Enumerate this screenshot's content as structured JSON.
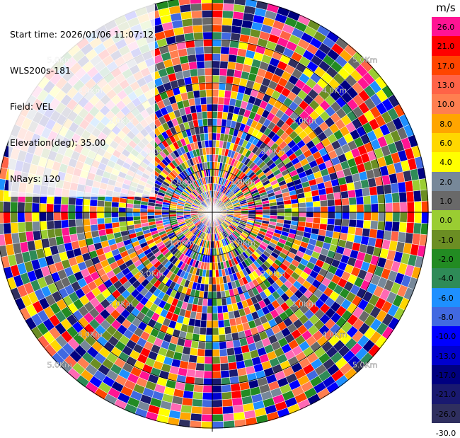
{
  "info": {
    "start_time": "Start time: 2026/01/06 11:07:12",
    "station": "WLS200s-181",
    "field": "Field: VEL",
    "elevation": "Elevation(deg): 35.00",
    "nrays": "NRays: 120"
  },
  "range_labels": [
    "1.0Km",
    "2.0Km",
    "3.0Km",
    "4.0Km",
    "5.0Km"
  ],
  "colorbar": {
    "unit": "m/s",
    "labels": [
      "26.0",
      "21.0",
      "17.0",
      "13.0",
      "10.0",
      "8.0",
      "6.0",
      "4.0",
      "2.0",
      "1.0",
      "0.0",
      "-1.0",
      "-2.0",
      "-4.0",
      "-6.0",
      "-8.0",
      "-10.0",
      "-13.0",
      "-17.0",
      "-21.0",
      "-26.0",
      "-30.0"
    ],
    "colors": [
      "#ff1493",
      "#ff0000",
      "#ff4500",
      "#ff6347",
      "#ff7f50",
      "#ffa500",
      "#ffd700",
      "#ffff00",
      "#778899",
      "#696969",
      "#9acd32",
      "#6b8e23",
      "#228b22",
      "#2e8b57",
      "#1e90ff",
      "#4169e1",
      "#0000ff",
      "#0000cd",
      "#000080",
      "#191970",
      "#2f2f5f",
      "#ff69b4"
    ]
  }
}
